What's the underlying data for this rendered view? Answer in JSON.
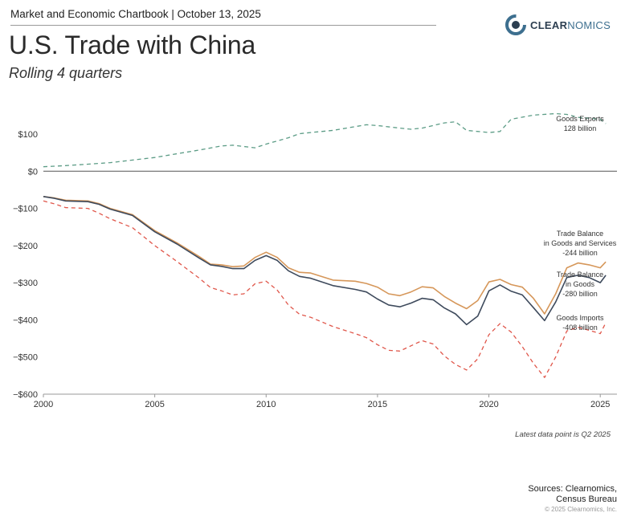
{
  "header": {
    "chartbook": "Market and Economic Chartbook | October 13, 2025",
    "brand_main": "CLEAR",
    "brand_accent": "NOMICS"
  },
  "title": "U.S. Trade with China",
  "subtitle": "Rolling 4 quarters",
  "footnote": "Latest data point is Q2 2025",
  "sources_line1": "Sources: Clearnomics,",
  "sources_line2": "Census Bureau",
  "copyright": "© 2025 Clearnomics, Inc.",
  "colors": {
    "exports": "#5c9c86",
    "balance_services": "#d6975a",
    "balance_goods": "#3e4a5c",
    "imports": "#e0574b",
    "zero_line": "#555555",
    "logo_ring": "#3d6f8f"
  },
  "chart_data": {
    "type": "line",
    "xlim": [
      2000,
      2025.75
    ],
    "ylim": [
      -600,
      160
    ],
    "x_ticks": [
      2000,
      2005,
      2010,
      2015,
      2020,
      2025
    ],
    "y_ticks": [
      {
        "v": 100,
        "label": "$100"
      },
      {
        "v": 0,
        "label": "$0"
      },
      {
        "v": -100,
        "label": "−$100"
      },
      {
        "v": -200,
        "label": "−$200"
      },
      {
        "v": -300,
        "label": "−$300"
      },
      {
        "v": -400,
        "label": "−$400"
      },
      {
        "v": -500,
        "label": "−$500"
      },
      {
        "v": -600,
        "label": "−$600"
      }
    ],
    "grid": false,
    "series": [
      {
        "key": "exports",
        "dashed": true,
        "label_lines": [
          "Goods Exports",
          "128 billion"
        ],
        "points": [
          [
            2000,
            12
          ],
          [
            2001,
            15
          ],
          [
            2002,
            19
          ],
          [
            2003,
            23
          ],
          [
            2004,
            30
          ],
          [
            2005,
            37
          ],
          [
            2006,
            47
          ],
          [
            2007,
            57
          ],
          [
            2008,
            68
          ],
          [
            2008.5,
            70
          ],
          [
            2009.5,
            63
          ],
          [
            2010,
            73
          ],
          [
            2011,
            90
          ],
          [
            2011.5,
            101
          ],
          [
            2012,
            104
          ],
          [
            2013,
            110
          ],
          [
            2014,
            120
          ],
          [
            2014.5,
            125
          ],
          [
            2015,
            123
          ],
          [
            2016,
            116
          ],
          [
            2016.5,
            113
          ],
          [
            2017,
            116
          ],
          [
            2018,
            130
          ],
          [
            2018.5,
            133
          ],
          [
            2019,
            110
          ],
          [
            2020,
            104
          ],
          [
            2020.5,
            107
          ],
          [
            2021,
            140
          ],
          [
            2022,
            151
          ],
          [
            2023,
            155
          ],
          [
            2023.5,
            153
          ],
          [
            2024,
            145
          ],
          [
            2025,
            140
          ],
          [
            2025.25,
            128
          ]
        ]
      },
      {
        "key": "balance_services",
        "dashed": false,
        "label_lines": [
          "Trade Balance",
          "in Goods and Services",
          "-244 billion"
        ],
        "points": [
          [
            2000,
            -68
          ],
          [
            2000.5,
            -72
          ],
          [
            2001,
            -78
          ],
          [
            2002,
            -80
          ],
          [
            2002.5,
            -87
          ],
          [
            2003,
            -100
          ],
          [
            2004,
            -117
          ],
          [
            2005,
            -160
          ],
          [
            2006,
            -193
          ],
          [
            2007,
            -230
          ],
          [
            2007.5,
            -250
          ],
          [
            2008,
            -252
          ],
          [
            2008.5,
            -257
          ],
          [
            2009,
            -255
          ],
          [
            2009.5,
            -232
          ],
          [
            2010,
            -218
          ],
          [
            2010.5,
            -232
          ],
          [
            2011,
            -260
          ],
          [
            2011.5,
            -272
          ],
          [
            2012,
            -274
          ],
          [
            2013,
            -293
          ],
          [
            2014,
            -296
          ],
          [
            2014.5,
            -302
          ],
          [
            2015,
            -312
          ],
          [
            2015.5,
            -330
          ],
          [
            2016,
            -335
          ],
          [
            2016.5,
            -325
          ],
          [
            2017,
            -311
          ],
          [
            2017.5,
            -314
          ],
          [
            2018,
            -337
          ],
          [
            2018.5,
            -355
          ],
          [
            2019,
            -370
          ],
          [
            2019.5,
            -348
          ],
          [
            2020,
            -298
          ],
          [
            2020.5,
            -291
          ],
          [
            2021,
            -305
          ],
          [
            2021.5,
            -312
          ],
          [
            2022,
            -342
          ],
          [
            2022.5,
            -384
          ],
          [
            2023,
            -330
          ],
          [
            2023.5,
            -260
          ],
          [
            2024,
            -247
          ],
          [
            2024.5,
            -252
          ],
          [
            2025,
            -260
          ],
          [
            2025.25,
            -244
          ]
        ]
      },
      {
        "key": "balance_goods",
        "dashed": false,
        "label_lines": [
          "Trade Balance",
          "in Goods",
          "-280 billion"
        ],
        "points": [
          [
            2000,
            -68
          ],
          [
            2000.5,
            -73
          ],
          [
            2001,
            -80
          ],
          [
            2002,
            -82
          ],
          [
            2002.5,
            -89
          ],
          [
            2003,
            -102
          ],
          [
            2004,
            -119
          ],
          [
            2005,
            -163
          ],
          [
            2006,
            -196
          ],
          [
            2007,
            -234
          ],
          [
            2007.5,
            -252
          ],
          [
            2008,
            -256
          ],
          [
            2008.5,
            -262
          ],
          [
            2009,
            -262
          ],
          [
            2009.5,
            -240
          ],
          [
            2010,
            -227
          ],
          [
            2010.5,
            -240
          ],
          [
            2011,
            -268
          ],
          [
            2011.5,
            -283
          ],
          [
            2012,
            -288
          ],
          [
            2013,
            -308
          ],
          [
            2014,
            -318
          ],
          [
            2014.5,
            -325
          ],
          [
            2015,
            -344
          ],
          [
            2015.5,
            -360
          ],
          [
            2016,
            -365
          ],
          [
            2016.5,
            -355
          ],
          [
            2017,
            -342
          ],
          [
            2017.5,
            -346
          ],
          [
            2018,
            -368
          ],
          [
            2018.5,
            -384
          ],
          [
            2019,
            -413
          ],
          [
            2019.5,
            -390
          ],
          [
            2020,
            -322
          ],
          [
            2020.5,
            -306
          ],
          [
            2021,
            -323
          ],
          [
            2021.5,
            -333
          ],
          [
            2022,
            -367
          ],
          [
            2022.5,
            -402
          ],
          [
            2023,
            -352
          ],
          [
            2023.5,
            -286
          ],
          [
            2024,
            -280
          ],
          [
            2024.5,
            -286
          ],
          [
            2025,
            -300
          ],
          [
            2025.25,
            -280
          ]
        ]
      },
      {
        "key": "imports",
        "dashed": true,
        "label_lines": [
          "Goods Imports",
          "-408 billion"
        ],
        "points": [
          [
            2000,
            -80
          ],
          [
            2000.5,
            -88
          ],
          [
            2001,
            -98
          ],
          [
            2002,
            -100
          ],
          [
            2002.5,
            -113
          ],
          [
            2003,
            -128
          ],
          [
            2004,
            -152
          ],
          [
            2005,
            -200
          ],
          [
            2006,
            -243
          ],
          [
            2007,
            -288
          ],
          [
            2007.5,
            -313
          ],
          [
            2008,
            -322
          ],
          [
            2008.5,
            -333
          ],
          [
            2009,
            -330
          ],
          [
            2009.5,
            -303
          ],
          [
            2010,
            -296
          ],
          [
            2010.5,
            -320
          ],
          [
            2011,
            -360
          ],
          [
            2011.5,
            -385
          ],
          [
            2012,
            -393
          ],
          [
            2013,
            -418
          ],
          [
            2014,
            -437
          ],
          [
            2014.5,
            -448
          ],
          [
            2015,
            -467
          ],
          [
            2015.5,
            -482
          ],
          [
            2016,
            -484
          ],
          [
            2016.5,
            -470
          ],
          [
            2017,
            -456
          ],
          [
            2017.5,
            -465
          ],
          [
            2018,
            -497
          ],
          [
            2018.5,
            -520
          ],
          [
            2019,
            -535
          ],
          [
            2019.5,
            -505
          ],
          [
            2020,
            -440
          ],
          [
            2020.5,
            -410
          ],
          [
            2021,
            -433
          ],
          [
            2021.5,
            -472
          ],
          [
            2022,
            -517
          ],
          [
            2022.5,
            -555
          ],
          [
            2023,
            -500
          ],
          [
            2023.5,
            -430
          ],
          [
            2024,
            -420
          ],
          [
            2024.5,
            -428
          ],
          [
            2025,
            -437
          ],
          [
            2025.25,
            -408
          ]
        ]
      }
    ]
  }
}
